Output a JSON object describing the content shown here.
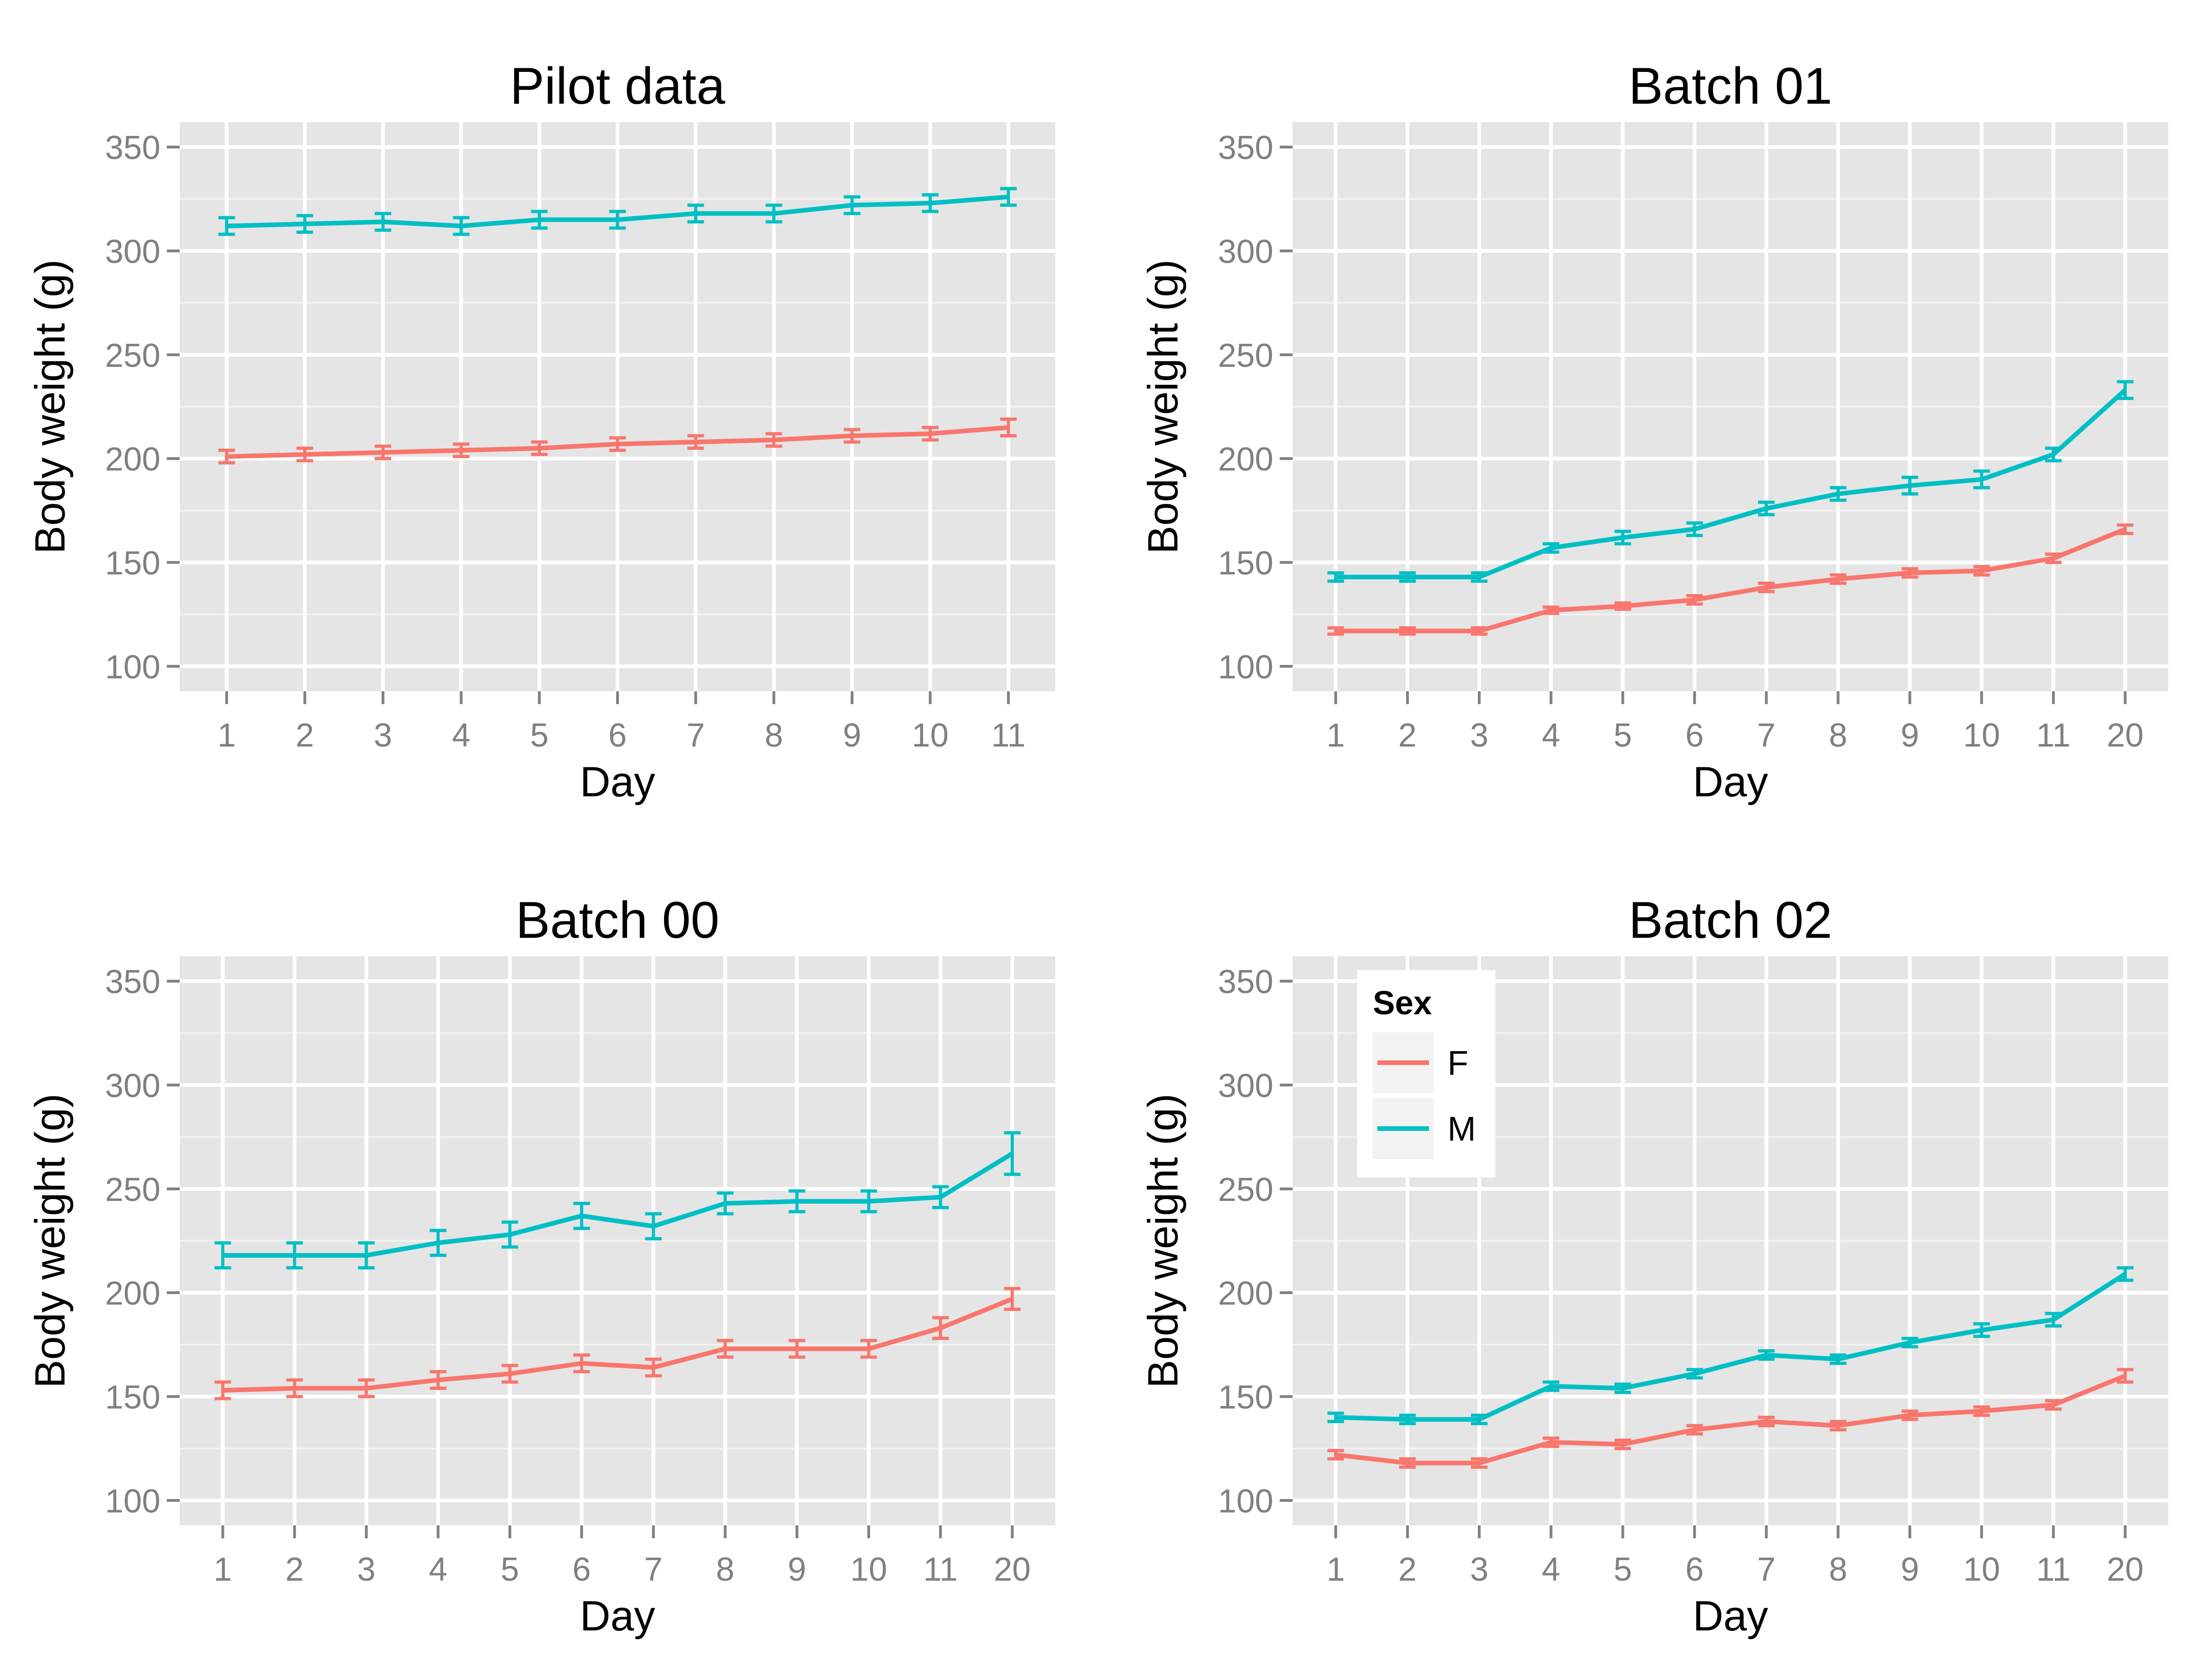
{
  "colors": {
    "panel_bg": "#E5E5E5",
    "grid": "#FFFFFF",
    "tick_label": "#808080",
    "tick_mark": "#808080",
    "text": "#000000",
    "legend_bg": "#FFFFFF",
    "legend_key_bg": "#F2F2F2"
  },
  "legend": {
    "title": "Sex",
    "items": [
      {
        "label": "F",
        "color": "#F8766D"
      },
      {
        "label": "M",
        "color": "#00BFC4"
      }
    ],
    "panel": 3
  },
  "chart_data": [
    {
      "type": "line",
      "title": "Pilot data",
      "xlabel": "Day",
      "ylabel": "Body weight (g)",
      "categories": [
        "1",
        "2",
        "3",
        "4",
        "5",
        "6",
        "7",
        "8",
        "9",
        "10",
        "11"
      ],
      "ylim": [
        88,
        362
      ],
      "yticks": [
        100,
        150,
        200,
        250,
        300,
        350
      ],
      "grid": true,
      "series": [
        {
          "name": "F",
          "color": "#F8766D",
          "values": [
            201,
            202,
            203,
            204,
            205,
            207,
            208,
            209,
            211,
            212,
            215
          ],
          "errors": [
            3,
            3,
            3,
            3,
            3,
            3,
            3,
            3,
            3,
            3,
            4
          ]
        },
        {
          "name": "M",
          "color": "#00BFC4",
          "values": [
            312,
            313,
            314,
            312,
            315,
            315,
            318,
            318,
            322,
            323,
            326
          ],
          "errors": [
            4,
            4,
            4,
            4,
            4,
            4,
            4,
            4,
            4,
            4,
            4
          ]
        }
      ]
    },
    {
      "type": "line",
      "title": "Batch 01",
      "xlabel": "Day",
      "ylabel": "Body weight (g)",
      "categories": [
        "1",
        "2",
        "3",
        "4",
        "5",
        "6",
        "7",
        "8",
        "9",
        "10",
        "11",
        "20"
      ],
      "ylim": [
        88,
        362
      ],
      "yticks": [
        100,
        150,
        200,
        250,
        300,
        350
      ],
      "grid": true,
      "series": [
        {
          "name": "F",
          "color": "#F8766D",
          "values": [
            117,
            117,
            117,
            127,
            129,
            132,
            138,
            142,
            145,
            146,
            152,
            166
          ],
          "errors": [
            1.5,
            1.5,
            1.5,
            1.5,
            1.5,
            2,
            2,
            2,
            2,
            2,
            2,
            2
          ]
        },
        {
          "name": "M",
          "color": "#00BFC4",
          "values": [
            143,
            143,
            143,
            157,
            162,
            166,
            176,
            183,
            187,
            190,
            202,
            233
          ],
          "errors": [
            2,
            2,
            2,
            2,
            3,
            3,
            3,
            3,
            4,
            4,
            3,
            4
          ]
        }
      ]
    },
    {
      "type": "line",
      "title": "Batch 00",
      "xlabel": "Day",
      "ylabel": "Body weight (g)",
      "categories": [
        "1",
        "2",
        "3",
        "4",
        "5",
        "6",
        "7",
        "8",
        "9",
        "10",
        "11",
        "20"
      ],
      "ylim": [
        88,
        362
      ],
      "yticks": [
        100,
        150,
        200,
        250,
        300,
        350
      ],
      "grid": true,
      "series": [
        {
          "name": "F",
          "color": "#F8766D",
          "values": [
            153,
            154,
            154,
            158,
            161,
            166,
            164,
            173,
            173,
            173,
            183,
            197
          ],
          "errors": [
            4,
            4,
            4,
            4,
            4,
            4,
            4,
            4,
            4,
            4,
            5,
            5
          ]
        },
        {
          "name": "M",
          "color": "#00BFC4",
          "values": [
            218,
            218,
            218,
            224,
            228,
            237,
            232,
            243,
            244,
            244,
            246,
            267
          ],
          "errors": [
            6,
            6,
            6,
            6,
            6,
            6,
            6,
            5,
            5,
            5,
            5,
            10
          ]
        }
      ]
    },
    {
      "type": "line",
      "title": "Batch 02",
      "xlabel": "Day",
      "ylabel": "Body weight (g)",
      "categories": [
        "1",
        "2",
        "3",
        "4",
        "5",
        "6",
        "7",
        "8",
        "9",
        "10",
        "11",
        "20"
      ],
      "ylim": [
        88,
        362
      ],
      "yticks": [
        100,
        150,
        200,
        250,
        300,
        350
      ],
      "grid": true,
      "series": [
        {
          "name": "F",
          "color": "#F8766D",
          "values": [
            122,
            118,
            118,
            128,
            127,
            134,
            138,
            136,
            141,
            143,
            146,
            160
          ],
          "errors": [
            2,
            2,
            2,
            2,
            2,
            2,
            2,
            2,
            2,
            2,
            2,
            3
          ]
        },
        {
          "name": "M",
          "color": "#00BFC4",
          "values": [
            140,
            139,
            139,
            155,
            154,
            161,
            170,
            168,
            176,
            182,
            187,
            209
          ],
          "errors": [
            2,
            2,
            2,
            2,
            2,
            2,
            2,
            2,
            2,
            3,
            3,
            3
          ]
        }
      ]
    }
  ]
}
